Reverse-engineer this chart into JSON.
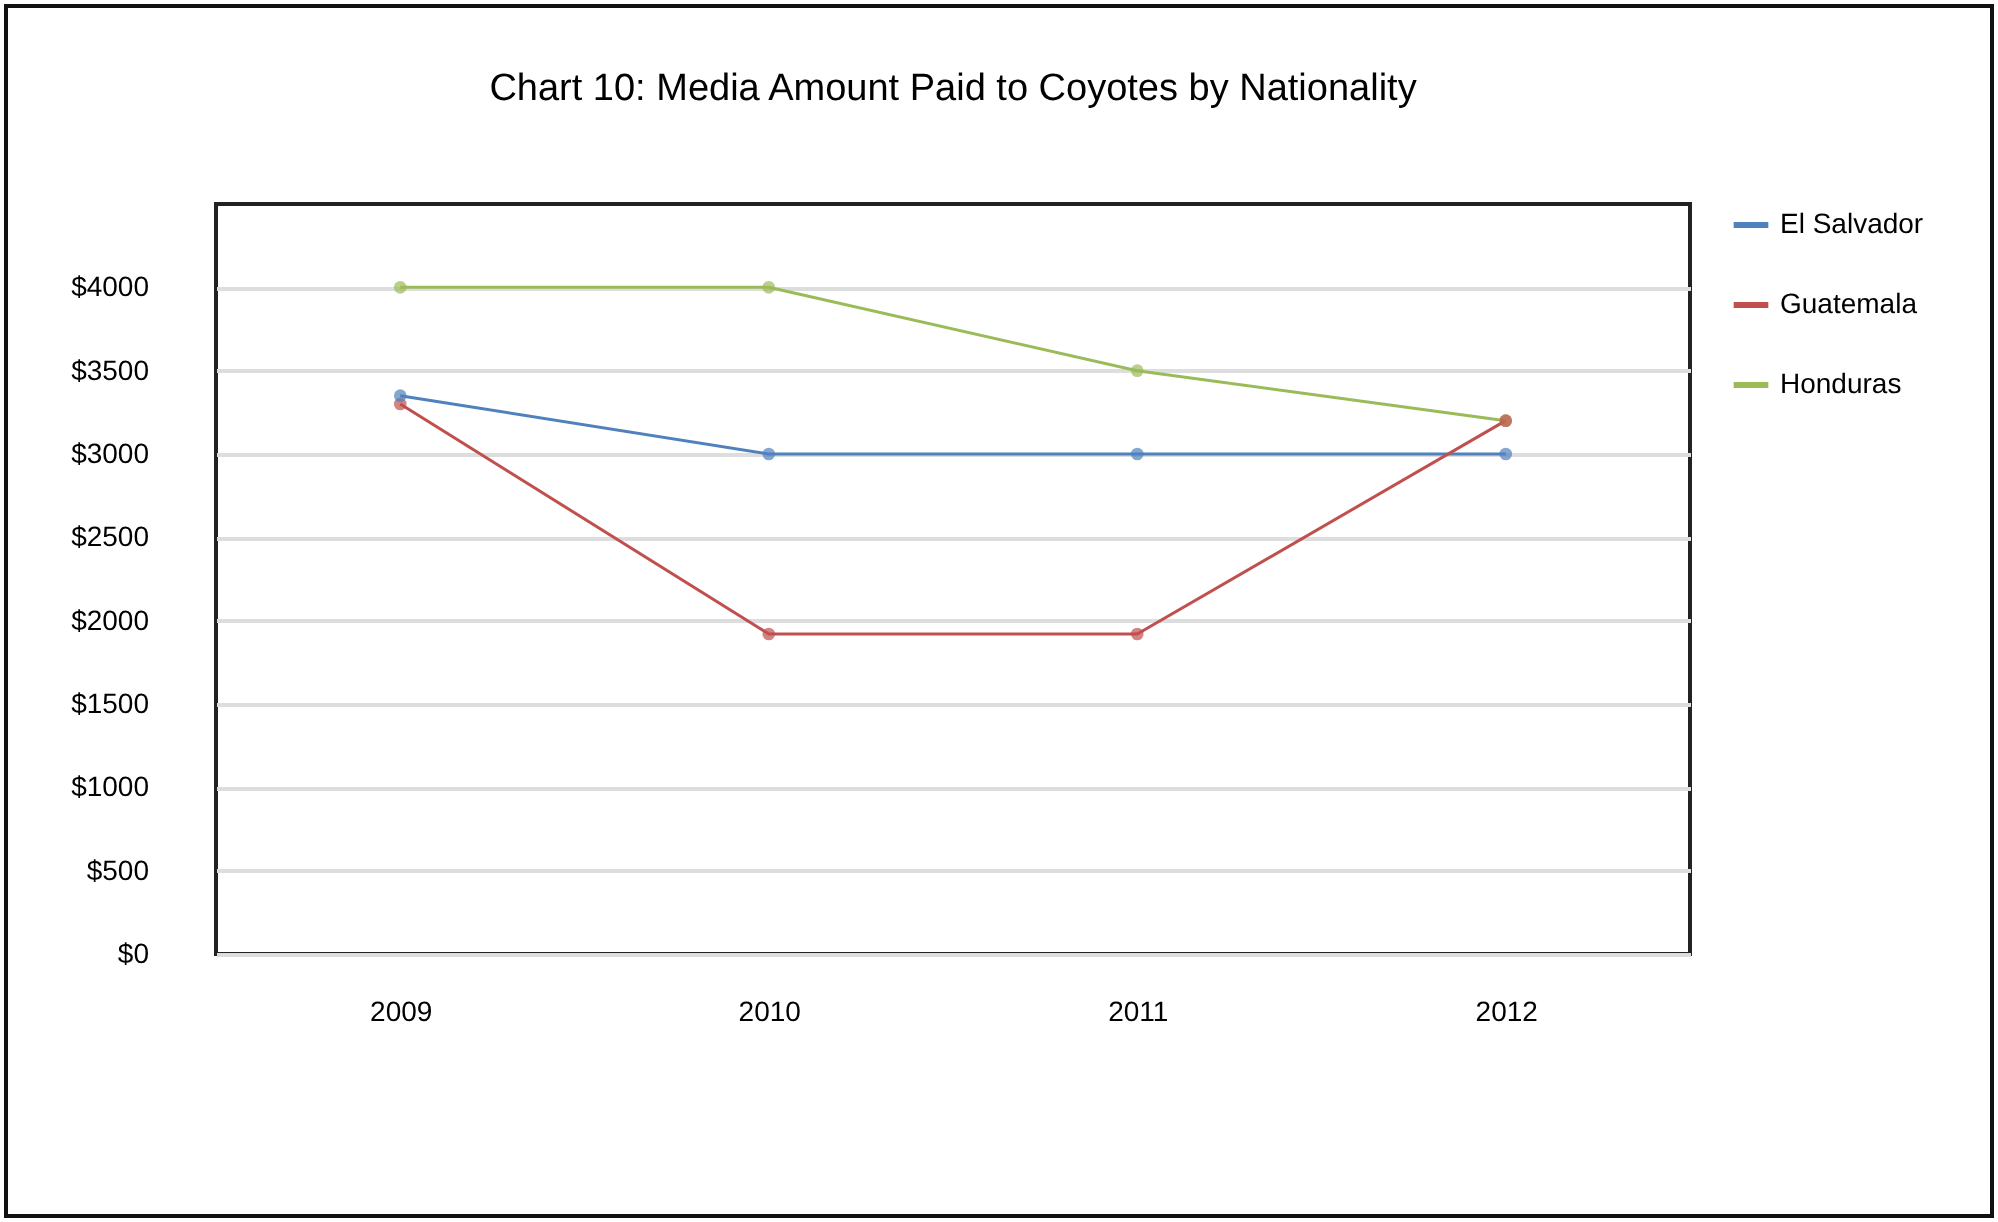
{
  "chart_data": {
    "type": "line",
    "title": "Chart 10: Media Amount Paid to Coyotes by Nationality",
    "categories": [
      "2009",
      "2010",
      "2011",
      "2012"
    ],
    "series": [
      {
        "name": "El Salvador",
        "color": "#4f81bd",
        "values": [
          3350,
          3000,
          3000,
          3000
        ]
      },
      {
        "name": "Guatemala",
        "color": "#c0504d",
        "values": [
          3300,
          1920,
          1920,
          3200
        ]
      },
      {
        "name": "Honduras",
        "color": "#9bbb59",
        "values": [
          4000,
          4000,
          3500,
          3200
        ]
      }
    ],
    "ylim": [
      0,
      4500
    ],
    "yticks": [
      {
        "value": 0,
        "label": "$0"
      },
      {
        "value": 500,
        "label": "$500"
      },
      {
        "value": 1000,
        "label": "$1000"
      },
      {
        "value": 1500,
        "label": "$1500"
      },
      {
        "value": 2000,
        "label": "$2000"
      },
      {
        "value": 2500,
        "label": "$2500"
      },
      {
        "value": 3000,
        "label": "$3000"
      },
      {
        "value": 3500,
        "label": "$3500"
      },
      {
        "value": 4000,
        "label": "$4000"
      }
    ],
    "grid": "y",
    "legend": "right",
    "marker": "circle",
    "line_style": "solid"
  }
}
